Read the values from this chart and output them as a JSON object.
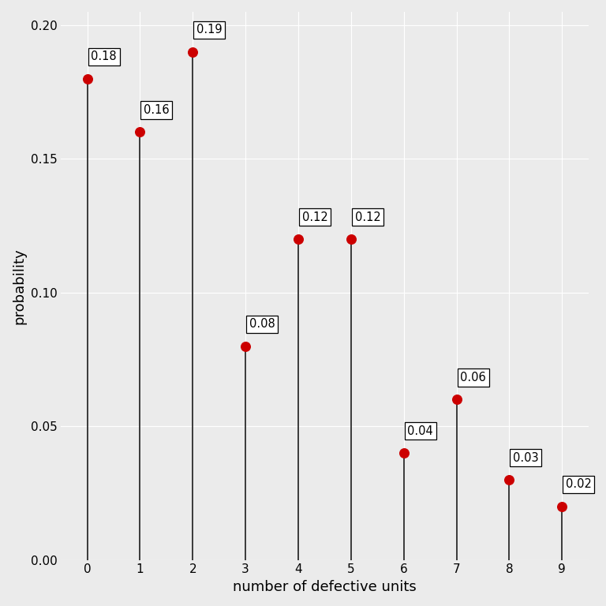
{
  "x": [
    0,
    1,
    2,
    3,
    4,
    5,
    6,
    7,
    8,
    9
  ],
  "y": [
    0.18,
    0.16,
    0.19,
    0.08,
    0.12,
    0.12,
    0.04,
    0.06,
    0.03,
    0.02
  ],
  "labels": [
    "0.18",
    "0.16",
    "0.19",
    "0.08",
    "0.12",
    "0.12",
    "0.04",
    "0.06",
    "0.03",
    "0.02"
  ],
  "label_offsets_x": [
    0.05,
    0.05,
    0.05,
    0.05,
    0.05,
    0.05,
    0.05,
    0.05,
    0.05,
    0.05
  ],
  "label_offsets_y": [
    0.005,
    0.005,
    0.005,
    0.005,
    0.005,
    0.005,
    0.005,
    0.005,
    0.005,
    0.005
  ],
  "xlabel": "number of defective units",
  "ylabel": "probability",
  "ylim": [
    0.0,
    0.205
  ],
  "xlim": [
    -0.5,
    9.5
  ],
  "dot_color": "#cc0000",
  "line_color": "#1a1a1a",
  "background_color": "#ebebeb",
  "grid_color": "#ffffff",
  "dot_size": 70,
  "line_width": 1.2,
  "label_fontsize": 10.5,
  "axis_label_fontsize": 13,
  "tick_fontsize": 11,
  "yticks": [
    0.0,
    0.05,
    0.1,
    0.15,
    0.2
  ]
}
